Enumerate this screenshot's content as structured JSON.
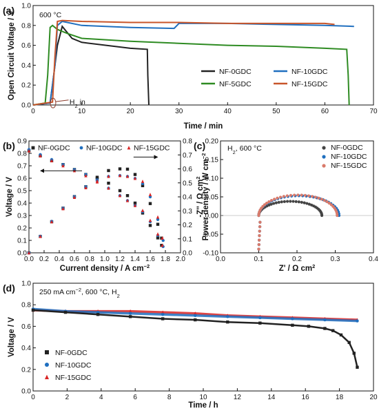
{
  "colors": {
    "black": "#222222",
    "blue": "#1f6fbf",
    "green": "#2e8b22",
    "orange": "#c8552a",
    "red": "#d92525",
    "pink": "#d97a6a"
  },
  "chart_data": [
    {
      "id": "a",
      "panel_label": "(a)",
      "type": "line",
      "annotation": "600 °C",
      "h2_label": "H",
      "h2_sub": "2",
      "h2_suffix": " in",
      "xlabel": "Time / min",
      "ylabel": "Open Circuit Voltage / V",
      "xlim": [
        0,
        70
      ],
      "ylim": [
        0,
        1.0
      ],
      "xticks": [
        "0",
        "10",
        "20",
        "30",
        "40",
        "50",
        "60",
        "70"
      ],
      "yticks": [
        "0.0",
        "0.2",
        "0.4",
        "0.6",
        "0.8",
        "1.0"
      ],
      "legend": "bottom-right",
      "series": [
        {
          "name": "NF-0GDC",
          "color": "#222222",
          "x": [
            0,
            3.5,
            4,
            5,
            6,
            7,
            8,
            10,
            15,
            20,
            23.5,
            23.6,
            23.8
          ],
          "y": [
            0,
            0.02,
            0.2,
            0.6,
            0.79,
            0.73,
            0.67,
            0.63,
            0.6,
            0.57,
            0.56,
            0.3,
            0
          ]
        },
        {
          "name": "NF-10GDC",
          "color": "#1f6fbf",
          "x": [
            0,
            3.5,
            4.5,
            5,
            6,
            10,
            20,
            29,
            30,
            40,
            50,
            60,
            66
          ],
          "y": [
            0,
            0.02,
            0.4,
            0.8,
            0.84,
            0.8,
            0.78,
            0.77,
            0.82,
            0.82,
            0.81,
            0.8,
            0.79
          ]
        },
        {
          "name": "NF-5GDC",
          "color": "#2e8b22",
          "x": [
            0,
            2.5,
            3,
            3.5,
            4,
            5,
            7,
            10,
            20,
            30,
            40,
            50,
            60,
            64.5,
            64.8,
            65
          ],
          "y": [
            0,
            0.02,
            0.3,
            0.78,
            0.8,
            0.76,
            0.72,
            0.67,
            0.64,
            0.62,
            0.6,
            0.59,
            0.57,
            0.56,
            0.3,
            0
          ]
        },
        {
          "name": "NF-15GDC",
          "color": "#c8552a",
          "x": [
            0,
            4,
            4.5,
            5,
            6,
            10,
            20,
            30,
            40,
            50,
            60,
            62
          ],
          "y": [
            0,
            0.03,
            0.5,
            0.84,
            0.85,
            0.84,
            0.83,
            0.83,
            0.82,
            0.82,
            0.82,
            0.81
          ]
        }
      ]
    },
    {
      "id": "b",
      "panel_label": "(b)",
      "type": "scatter",
      "xlabel": "Current density / A cm",
      "xlabel_sup": "−2",
      "ylabel": "Voltage / V",
      "y2label": "Power density / W cm",
      "y2label_sup": "−2",
      "xlim": [
        0,
        2.0
      ],
      "ylim": [
        0,
        0.9
      ],
      "y2lim": [
        0,
        0.8
      ],
      "xticks": [
        "0.0",
        "0.2",
        "0.4",
        "0.6",
        "0.8",
        "1.0",
        "1.2",
        "1.4",
        "1.6",
        "1.8",
        "2.0"
      ],
      "yticks": [
        "0.0",
        "0.1",
        "0.2",
        "0.3",
        "0.4",
        "0.5",
        "0.6",
        "0.7",
        "0.8",
        "0.9"
      ],
      "y2ticks": [
        "0.0",
        "0.1",
        "0.2",
        "0.3",
        "0.4",
        "0.5",
        "0.6",
        "0.7",
        "0.8"
      ],
      "legend": "top",
      "series": [
        {
          "name": "NF-0GDC",
          "color": "#222222",
          "marker": "square",
          "i": [
            0.0,
            0.15,
            0.3,
            0.45,
            0.6,
            0.75,
            0.9,
            1.05,
            1.2,
            1.3,
            1.4,
            1.5,
            1.6,
            1.7,
            1.75
          ],
          "v": [
            0.82,
            0.78,
            0.74,
            0.71,
            0.67,
            0.63,
            0.6,
            0.56,
            0.5,
            0.46,
            0.4,
            0.32,
            0.22,
            0.12,
            0.06
          ]
        },
        {
          "name": "NF-10GDC",
          "color": "#1f6fbf",
          "marker": "circle",
          "i": [
            0.0,
            0.15,
            0.3,
            0.45,
            0.6,
            0.75,
            0.9,
            1.05,
            1.2,
            1.3,
            1.4,
            1.5,
            1.6,
            1.7,
            1.77
          ],
          "v": [
            0.83,
            0.79,
            0.75,
            0.71,
            0.67,
            0.63,
            0.58,
            0.52,
            0.46,
            0.42,
            0.38,
            0.33,
            0.25,
            0.14,
            0.05
          ]
        },
        {
          "name": "NF-15GDC",
          "color": "#d92525",
          "marker": "triangle",
          "i": [
            0.0,
            0.15,
            0.3,
            0.45,
            0.6,
            0.75,
            0.9,
            1.05,
            1.2,
            1.3,
            1.4,
            1.5,
            1.6,
            1.7,
            1.76
          ],
          "v": [
            0.82,
            0.78,
            0.74,
            0.7,
            0.66,
            0.62,
            0.57,
            0.52,
            0.46,
            0.42,
            0.38,
            0.34,
            0.26,
            0.15,
            0.06
          ]
        }
      ]
    },
    {
      "id": "c",
      "panel_label": "(c)",
      "type": "scatter",
      "annotation": "H",
      "annotation_sub": "2",
      "annotation_suffix": ", 600 °C",
      "xlabel": "Z' / Ω  cm",
      "xlabel_sup": "2",
      "ylabel": "-Z'' / Ω  cm",
      "ylabel_sup": "2",
      "xlim": [
        0,
        0.4
      ],
      "ylim": [
        -0.1,
        0.2
      ],
      "xticks": [
        "0.0",
        "0.1",
        "0.2",
        "0.3",
        "0.4"
      ],
      "yticks": [
        "-0.10",
        "-0.05",
        "0.00",
        "0.05",
        "0.10",
        "0.15",
        "0.20"
      ],
      "legend": "top-right",
      "series": [
        {
          "name": "NF-0GDC",
          "color": "#444444",
          "r0": 0.1,
          "r1": 0.265,
          "peak": 0.038
        },
        {
          "name": "NF-10GDC",
          "color": "#1f6fbf",
          "r0": 0.1,
          "r1": 0.31,
          "peak": 0.053
        },
        {
          "name": "NF-15GDC",
          "color": "#d97a6a",
          "r0": 0.1,
          "r1": 0.305,
          "peak": 0.055
        }
      ]
    },
    {
      "id": "d",
      "panel_label": "(d)",
      "type": "scatter",
      "annotation": "250 mA cm",
      "annotation_sup": "−2",
      "annotation_suffix": ", 600 °C, H",
      "annotation_sub": "2",
      "xlabel": "Time / h",
      "ylabel": "Voltage / V",
      "xlim": [
        0,
        21
      ],
      "ylim": [
        0,
        1.0
      ],
      "xticks": [
        "0",
        "2",
        "4",
        "6",
        "8",
        "10",
        "12",
        "14",
        "16",
        "18",
        "20"
      ],
      "yticks": [
        "0.0",
        "0.2",
        "0.4",
        "0.6",
        "0.8",
        "1.0"
      ],
      "legend": "left",
      "series": [
        {
          "name": "NF-0GDC",
          "color": "#222222",
          "marker": "square",
          "x": [
            0,
            2,
            4,
            6,
            8,
            10,
            12,
            14,
            16,
            17,
            18,
            18.5,
            19,
            19.5,
            19.8,
            20
          ],
          "y": [
            0.75,
            0.73,
            0.71,
            0.69,
            0.67,
            0.66,
            0.64,
            0.63,
            0.61,
            0.6,
            0.58,
            0.56,
            0.52,
            0.45,
            0.35,
            0.22
          ]
        },
        {
          "name": "NF-10GDC",
          "color": "#1f6fbf",
          "marker": "circle",
          "x": [
            0,
            2,
            4,
            6,
            8,
            10,
            12,
            14,
            16,
            18,
            20
          ],
          "y": [
            0.76,
            0.74,
            0.73,
            0.72,
            0.71,
            0.7,
            0.69,
            0.68,
            0.67,
            0.66,
            0.65
          ]
        },
        {
          "name": "NF-15GDC",
          "color": "#d92525",
          "marker": "triangle",
          "x": [
            0,
            2,
            4,
            6,
            8,
            10,
            12,
            14,
            16,
            18,
            20
          ],
          "y": [
            0.75,
            0.74,
            0.74,
            0.74,
            0.73,
            0.72,
            0.7,
            0.69,
            0.68,
            0.67,
            0.66
          ]
        }
      ]
    }
  ]
}
